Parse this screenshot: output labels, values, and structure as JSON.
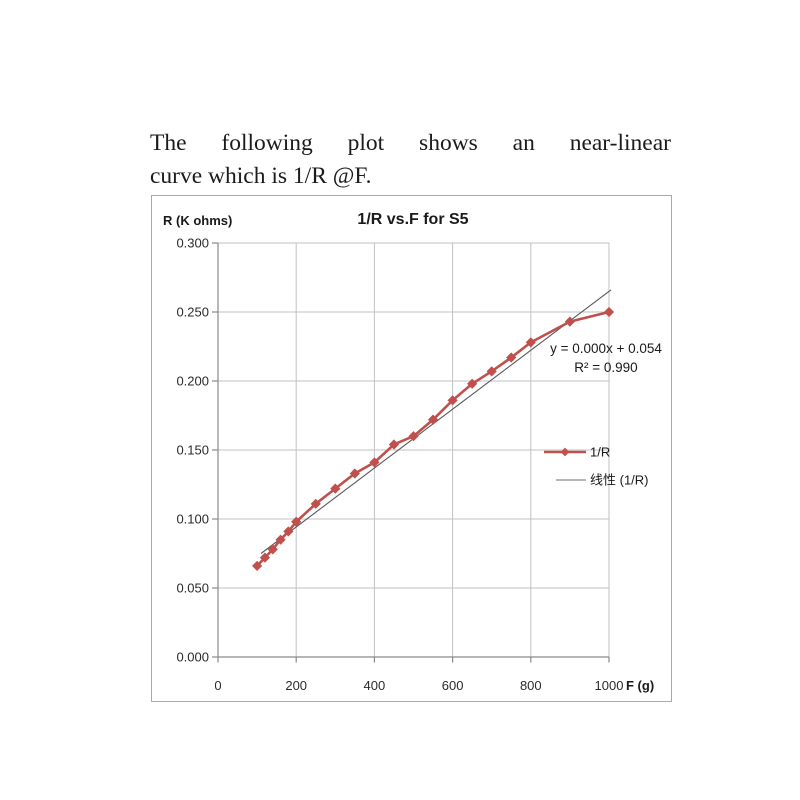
{
  "intro": {
    "line1": "The following plot shows an near-linear",
    "line2": "curve which is 1/R @F."
  },
  "chart": {
    "colors": {
      "series_red": "#c0504d",
      "trendline_gray": "#595959",
      "legend_line_gray": "#8c8c8c",
      "gridline": "#c2c2c2",
      "axis": "#8a8a8a",
      "frame_border": "#a9a9a9",
      "text": "#1a1a1a"
    }
  },
  "chart_data": {
    "type": "line",
    "title": "1/R vs.F for S5",
    "ylabel": "R (K ohms)",
    "xlabel": "F (g)",
    "xlim": [
      0,
      1000
    ],
    "ylim": [
      0.0,
      0.3
    ],
    "grid": true,
    "legend_position": "right-middle",
    "x_ticks": [
      "0",
      "200",
      "400",
      "600",
      "800",
      "1000"
    ],
    "x_tick_values": [
      0,
      200,
      400,
      600,
      800,
      1000
    ],
    "y_ticks_top_to_bottom": [
      "0.300",
      "0.250",
      "0.200",
      "0.150",
      "0.100",
      "0.050",
      "0.000"
    ],
    "y_tick_values": [
      0.3,
      0.25,
      0.2,
      0.15,
      0.1,
      0.05,
      0.0
    ],
    "series": [
      {
        "name": "1/R",
        "marker": "diamond",
        "color": "#c0504d",
        "x": [
          100,
          120,
          140,
          160,
          180,
          200,
          250,
          300,
          350,
          400,
          450,
          500,
          550,
          600,
          650,
          700,
          750,
          800,
          900,
          1000
        ],
        "y": [
          0.066,
          0.072,
          0.078,
          0.085,
          0.091,
          0.098,
          0.111,
          0.122,
          0.133,
          0.141,
          0.154,
          0.16,
          0.172,
          0.186,
          0.198,
          0.207,
          0.217,
          0.228,
          0.243,
          0.25
        ]
      }
    ],
    "trendline": {
      "name": "线性 (1/R)",
      "color": "#595959",
      "equation": "y = 0.000x + 0.054",
      "r_squared": "R² = 0.990",
      "x": [
        110,
        1005
      ],
      "y": [
        0.075,
        0.266
      ]
    }
  }
}
